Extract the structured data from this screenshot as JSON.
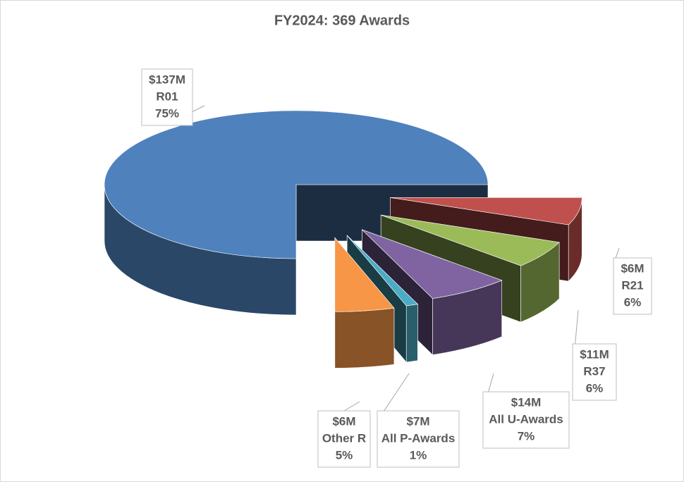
{
  "chart_data": {
    "type": "pie3d",
    "title": "FY2024: 369 Awards",
    "categories": [
      "R01",
      "R21",
      "R37",
      "All U-Awards",
      "All P-Awards",
      "Other R"
    ],
    "values": [
      75,
      6,
      6,
      7,
      1,
      5
    ],
    "value_labels": [
      "75%",
      "6%",
      "6%",
      "7%",
      "1%",
      "5%"
    ],
    "amount_labels": [
      "$137M",
      "$6M",
      "$11M",
      "$14M",
      "$7M",
      "$6M"
    ],
    "colors": [
      "#4f81bd",
      "#c0504d",
      "#9bbb59",
      "#8064a2",
      "#4bacc6",
      "#f79646"
    ]
  }
}
